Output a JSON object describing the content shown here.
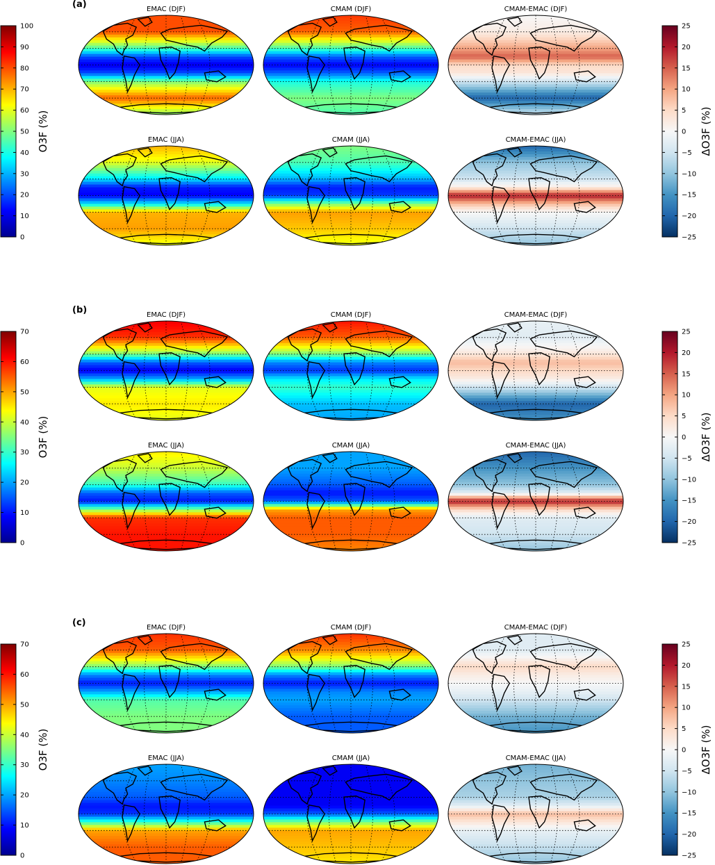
{
  "chart_data": {
    "type": "heatmap",
    "panels": [
      {
        "label": "(a)",
        "map_titles": [
          "EMAC (DJF)",
          "CMAM (DJF)",
          "CMAM-EMAC (DJF)",
          "EMAC (JJA)",
          "CMAM (JJA)",
          "CMAM-EMAC (JJA)"
        ],
        "left_colorbar": {
          "label": "O3F (%)",
          "range": [
            0,
            100
          ],
          "ticks": [
            "0",
            "10",
            "20",
            "30",
            "40",
            "50",
            "60",
            "70",
            "80",
            "90",
            "100"
          ]
        },
        "right_colorbar": {
          "label": "ΔO3F (%)",
          "range": [
            -25,
            25
          ],
          "ticks": [
            "−25",
            "−20",
            "−15",
            "−10",
            "−5",
            "0",
            "5",
            "10",
            "15",
            "20",
            "25"
          ]
        },
        "zonal_profiles": {
          "lat": [
            90,
            60,
            30,
            15,
            0,
            -15,
            -30,
            -60,
            -90
          ],
          "EMAC_DJF": [
            80,
            80,
            45,
            20,
            10,
            20,
            50,
            78,
            50
          ],
          "CMAM_DJF": [
            82,
            78,
            45,
            22,
            12,
            22,
            40,
            50,
            45
          ],
          "DIFF_DJF": [
            0,
            2,
            10,
            15,
            5,
            3,
            -5,
            -20,
            -5
          ],
          "EMAC_JJA": [
            70,
            60,
            35,
            15,
            12,
            35,
            70,
            72,
            60
          ],
          "CMAM_JJA": [
            50,
            45,
            30,
            15,
            18,
            50,
            72,
            68,
            60
          ],
          "DIFF_JJA": [
            -20,
            -10,
            -5,
            2,
            20,
            8,
            0,
            -5,
            -10
          ]
        }
      },
      {
        "label": "(b)",
        "map_titles": [
          "EMAC (DJF)",
          "CMAM (DJF)",
          "CMAM-EMAC (DJF)",
          "EMAC (JJA)",
          "CMAM (JJA)",
          "CMAM-EMAC (JJA)"
        ],
        "left_colorbar": {
          "label": "O3F (%)",
          "range": [
            0,
            70
          ],
          "ticks": [
            "0",
            "10",
            "20",
            "30",
            "40",
            "50",
            "60",
            "70"
          ]
        },
        "right_colorbar": {
          "label": "ΔO3F (%)",
          "range": [
            -25,
            25
          ],
          "ticks": [
            "−25",
            "−20",
            "−15",
            "−10",
            "−5",
            "0",
            "5",
            "10",
            "15",
            "20",
            "25"
          ]
        },
        "zonal_profiles": {
          "lat": [
            90,
            60,
            30,
            15,
            0,
            -15,
            -30,
            -60,
            -90
          ],
          "EMAC_DJF": [
            62,
            58,
            35,
            15,
            8,
            20,
            42,
            45,
            42
          ],
          "CMAM_DJF": [
            60,
            55,
            35,
            18,
            12,
            25,
            30,
            22,
            20
          ],
          "DIFF_DJF": [
            -2,
            -3,
            3,
            8,
            5,
            2,
            -5,
            -20,
            -15
          ],
          "EMAC_JJA": [
            45,
            40,
            30,
            15,
            10,
            35,
            58,
            60,
            60
          ],
          "CMAM_JJA": [
            20,
            20,
            15,
            10,
            15,
            50,
            55,
            55,
            52
          ],
          "DIFF_JJA": [
            -20,
            -15,
            -10,
            -3,
            20,
            5,
            -3,
            -5,
            -10
          ]
        }
      },
      {
        "label": "(c)",
        "map_titles": [
          "EMAC (DJF)",
          "CMAM (DJF)",
          "CMAM-EMAC (DJF)",
          "EMAC (JJA)",
          "CMAM (JJA)",
          "CMAM-EMAC (JJA)"
        ],
        "left_colorbar": {
          "label": "O3F (%)",
          "range": [
            0,
            70
          ],
          "ticks": [
            "0",
            "10",
            "20",
            "30",
            "40",
            "50",
            "60",
            "70"
          ]
        },
        "right_colorbar": {
          "label": "ΔO3F (%)",
          "range": [
            -25,
            25
          ],
          "ticks": [
            "−25",
            "−20",
            "−15",
            "−10",
            "−5",
            "0",
            "5",
            "10",
            "15",
            "20",
            "25"
          ]
        },
        "zonal_profiles": {
          "lat": [
            90,
            60,
            30,
            15,
            0,
            -15,
            -30,
            -60,
            -90
          ],
          "EMAC_DJF": [
            58,
            55,
            35,
            18,
            10,
            20,
            32,
            35,
            35
          ],
          "CMAM_DJF": [
            58,
            52,
            35,
            18,
            10,
            18,
            20,
            15,
            15
          ],
          "DIFF_DJF": [
            -3,
            -3,
            5,
            2,
            0,
            -2,
            -5,
            -12,
            -15
          ],
          "EMAC_JJA": [
            20,
            18,
            15,
            10,
            12,
            30,
            50,
            55,
            55
          ],
          "CMAM_JJA": [
            8,
            8,
            8,
            8,
            15,
            35,
            50,
            48,
            45
          ],
          "DIFF_JJA": [
            -12,
            -10,
            -8,
            -3,
            8,
            3,
            -2,
            -6,
            -10
          ]
        }
      }
    ]
  }
}
